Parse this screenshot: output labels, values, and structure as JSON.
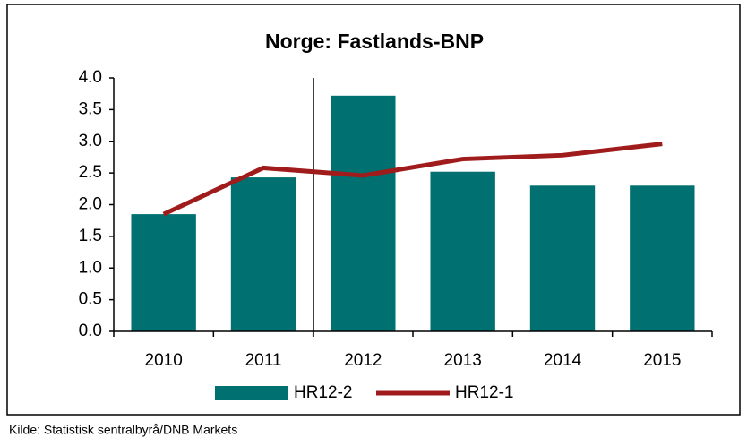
{
  "chart_data": {
    "type": "bar",
    "title": "Norge: Fastlands-BNP",
    "categories": [
      "2010",
      "2011",
      "2012",
      "2013",
      "2014",
      "2015"
    ],
    "series": [
      {
        "name": "HR12-2",
        "type": "bar",
        "color": "#007070",
        "values": [
          1.85,
          2.43,
          3.72,
          2.52,
          2.3,
          2.3
        ]
      },
      {
        "name": "HR12-1",
        "type": "line",
        "color": "#a01c1c",
        "values": [
          1.85,
          2.58,
          2.46,
          2.72,
          2.78,
          2.96
        ]
      }
    ],
    "ylim": [
      0,
      4
    ],
    "yticks": [
      {
        "value": 0,
        "label": "0.0"
      },
      0.5,
      {
        "value": 1,
        "label": "1.0"
      },
      1.5,
      {
        "value": 2,
        "label": "2.0"
      },
      2.5,
      {
        "value": 3,
        "label": "3.0"
      },
      3.5,
      {
        "value": 4,
        "label": "4.0"
      }
    ],
    "grid": false,
    "legend": "bottom",
    "source": "Kilde: Statistisk sentralbyrå/DNB Markets"
  }
}
